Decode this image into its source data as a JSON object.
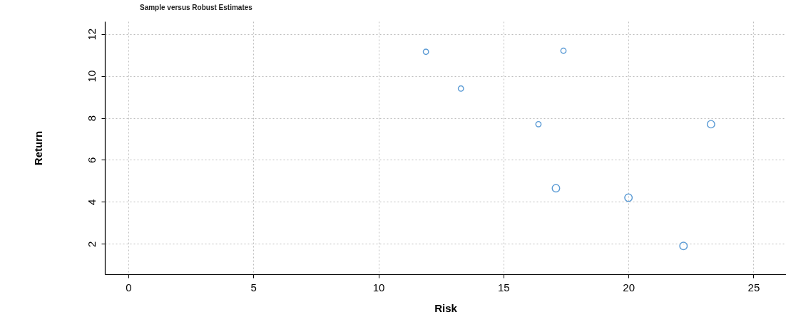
{
  "chart_data": {
    "type": "scatter",
    "title": "Sample versus Robust Estimates",
    "xlabel": "Risk",
    "ylabel": "Return",
    "xlim": [
      -0.94,
      26.3
    ],
    "ylim": [
      0.55,
      12.6
    ],
    "xticks": [
      0,
      5,
      10,
      15,
      20,
      25
    ],
    "yticks": [
      2,
      4,
      6,
      8,
      10,
      12
    ],
    "grid": true,
    "marker": "circle",
    "series": [
      {
        "color": "#5b9bd5",
        "x": [
          11.9,
          17.4,
          13.3,
          16.4
        ],
        "values": [
          11.15,
          11.2,
          9.4,
          7.7
        ]
      },
      {
        "color": "#5b9bd5",
        "x": [
          23.3,
          17.1,
          20.0,
          22.2
        ],
        "values": [
          7.7,
          4.65,
          4.2,
          1.9
        ]
      }
    ]
  }
}
